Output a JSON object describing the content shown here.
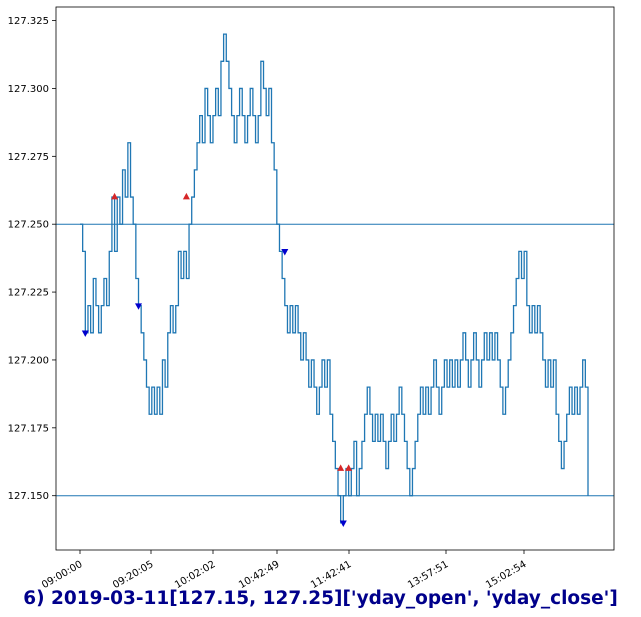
{
  "caption": "6) 2019-03-11[127.15, 127.25]['yday_open', 'yday_close']",
  "chart_data": {
    "type": "line",
    "title": "",
    "xlabel": "",
    "ylabel": "",
    "ylim": [
      127.13,
      127.33
    ],
    "x_tick_labels": [
      "09:00:00",
      "09:20:05",
      "10:02:02",
      "10:42:49",
      "11:42:41",
      "13:57:51",
      "15:02:54"
    ],
    "y_ticks": [
      127.15,
      127.175,
      127.2,
      127.225,
      127.25,
      127.275,
      127.3,
      127.325
    ],
    "y_tick_labels": [
      "127.150",
      "127.175",
      "127.200",
      "127.225",
      "127.250",
      "127.275",
      "127.300",
      "127.325"
    ],
    "reference_lines": [
      127.15,
      127.25
    ],
    "colors": {
      "line": "#1f77b4",
      "buy_marker": "#d62728",
      "sell_marker": "#0000cd",
      "caption": "#00008b"
    },
    "series": [
      {
        "values": [
          127.25,
          127.24,
          127.21,
          127.22,
          127.21,
          127.23,
          127.22,
          127.21,
          127.22,
          127.23,
          127.22,
          127.24,
          127.26,
          127.24,
          127.26,
          127.25,
          127.27,
          127.26,
          127.28,
          127.26,
          127.25,
          127.23,
          127.22,
          127.21,
          127.2,
          127.19,
          127.18,
          127.19,
          127.18,
          127.19,
          127.18,
          127.2,
          127.19,
          127.21,
          127.22,
          127.21,
          127.22,
          127.24,
          127.23,
          127.24,
          127.23,
          127.25,
          127.26,
          127.27,
          127.28,
          127.29,
          127.28,
          127.3,
          127.29,
          127.28,
          127.29,
          127.3,
          127.29,
          127.31,
          127.32,
          127.31,
          127.3,
          127.29,
          127.28,
          127.29,
          127.3,
          127.29,
          127.28,
          127.29,
          127.3,
          127.29,
          127.28,
          127.29,
          127.31,
          127.3,
          127.29,
          127.3,
          127.28,
          127.27,
          127.25,
          127.24,
          127.23,
          127.22,
          127.21,
          127.22,
          127.21,
          127.22,
          127.21,
          127.2,
          127.21,
          127.2,
          127.19,
          127.2,
          127.19,
          127.18,
          127.19,
          127.2,
          127.19,
          127.2,
          127.18,
          127.17,
          127.16,
          127.15,
          127.14,
          127.15,
          127.16,
          127.15,
          127.16,
          127.17,
          127.15,
          127.16,
          127.17,
          127.18,
          127.19,
          127.18,
          127.17,
          127.18,
          127.17,
          127.18,
          127.17,
          127.16,
          127.17,
          127.18,
          127.17,
          127.18,
          127.19,
          127.18,
          127.17,
          127.16,
          127.15,
          127.16,
          127.17,
          127.18,
          127.19,
          127.18,
          127.19,
          127.18,
          127.19,
          127.2,
          127.19,
          127.18,
          127.19,
          127.2,
          127.19,
          127.2,
          127.19,
          127.2,
          127.19,
          127.2,
          127.21,
          127.2,
          127.19,
          127.2,
          127.21,
          127.2,
          127.19,
          127.2,
          127.21,
          127.2,
          127.21,
          127.2,
          127.21,
          127.2,
          127.19,
          127.18,
          127.19,
          127.2,
          127.21,
          127.22,
          127.23,
          127.24,
          127.23,
          127.24,
          127.22,
          127.21,
          127.22,
          127.21,
          127.22,
          127.21,
          127.2,
          127.19,
          127.2,
          127.19,
          127.2,
          127.18,
          127.17,
          127.16,
          127.17,
          127.18,
          127.19,
          127.18,
          127.19,
          127.18,
          127.19,
          127.2,
          127.19,
          127.15
        ]
      }
    ],
    "markers": [
      {
        "index": 2,
        "y": 127.21,
        "kind": "sell"
      },
      {
        "index": 13,
        "y": 127.26,
        "kind": "buy"
      },
      {
        "index": 22,
        "y": 127.22,
        "kind": "sell"
      },
      {
        "index": 40,
        "y": 127.26,
        "kind": "buy"
      },
      {
        "index": 77,
        "y": 127.24,
        "kind": "sell"
      },
      {
        "index": 98,
        "y": 127.16,
        "kind": "buy"
      },
      {
        "index": 99,
        "y": 127.14,
        "kind": "sell"
      },
      {
        "index": 101,
        "y": 127.16,
        "kind": "buy"
      }
    ]
  }
}
